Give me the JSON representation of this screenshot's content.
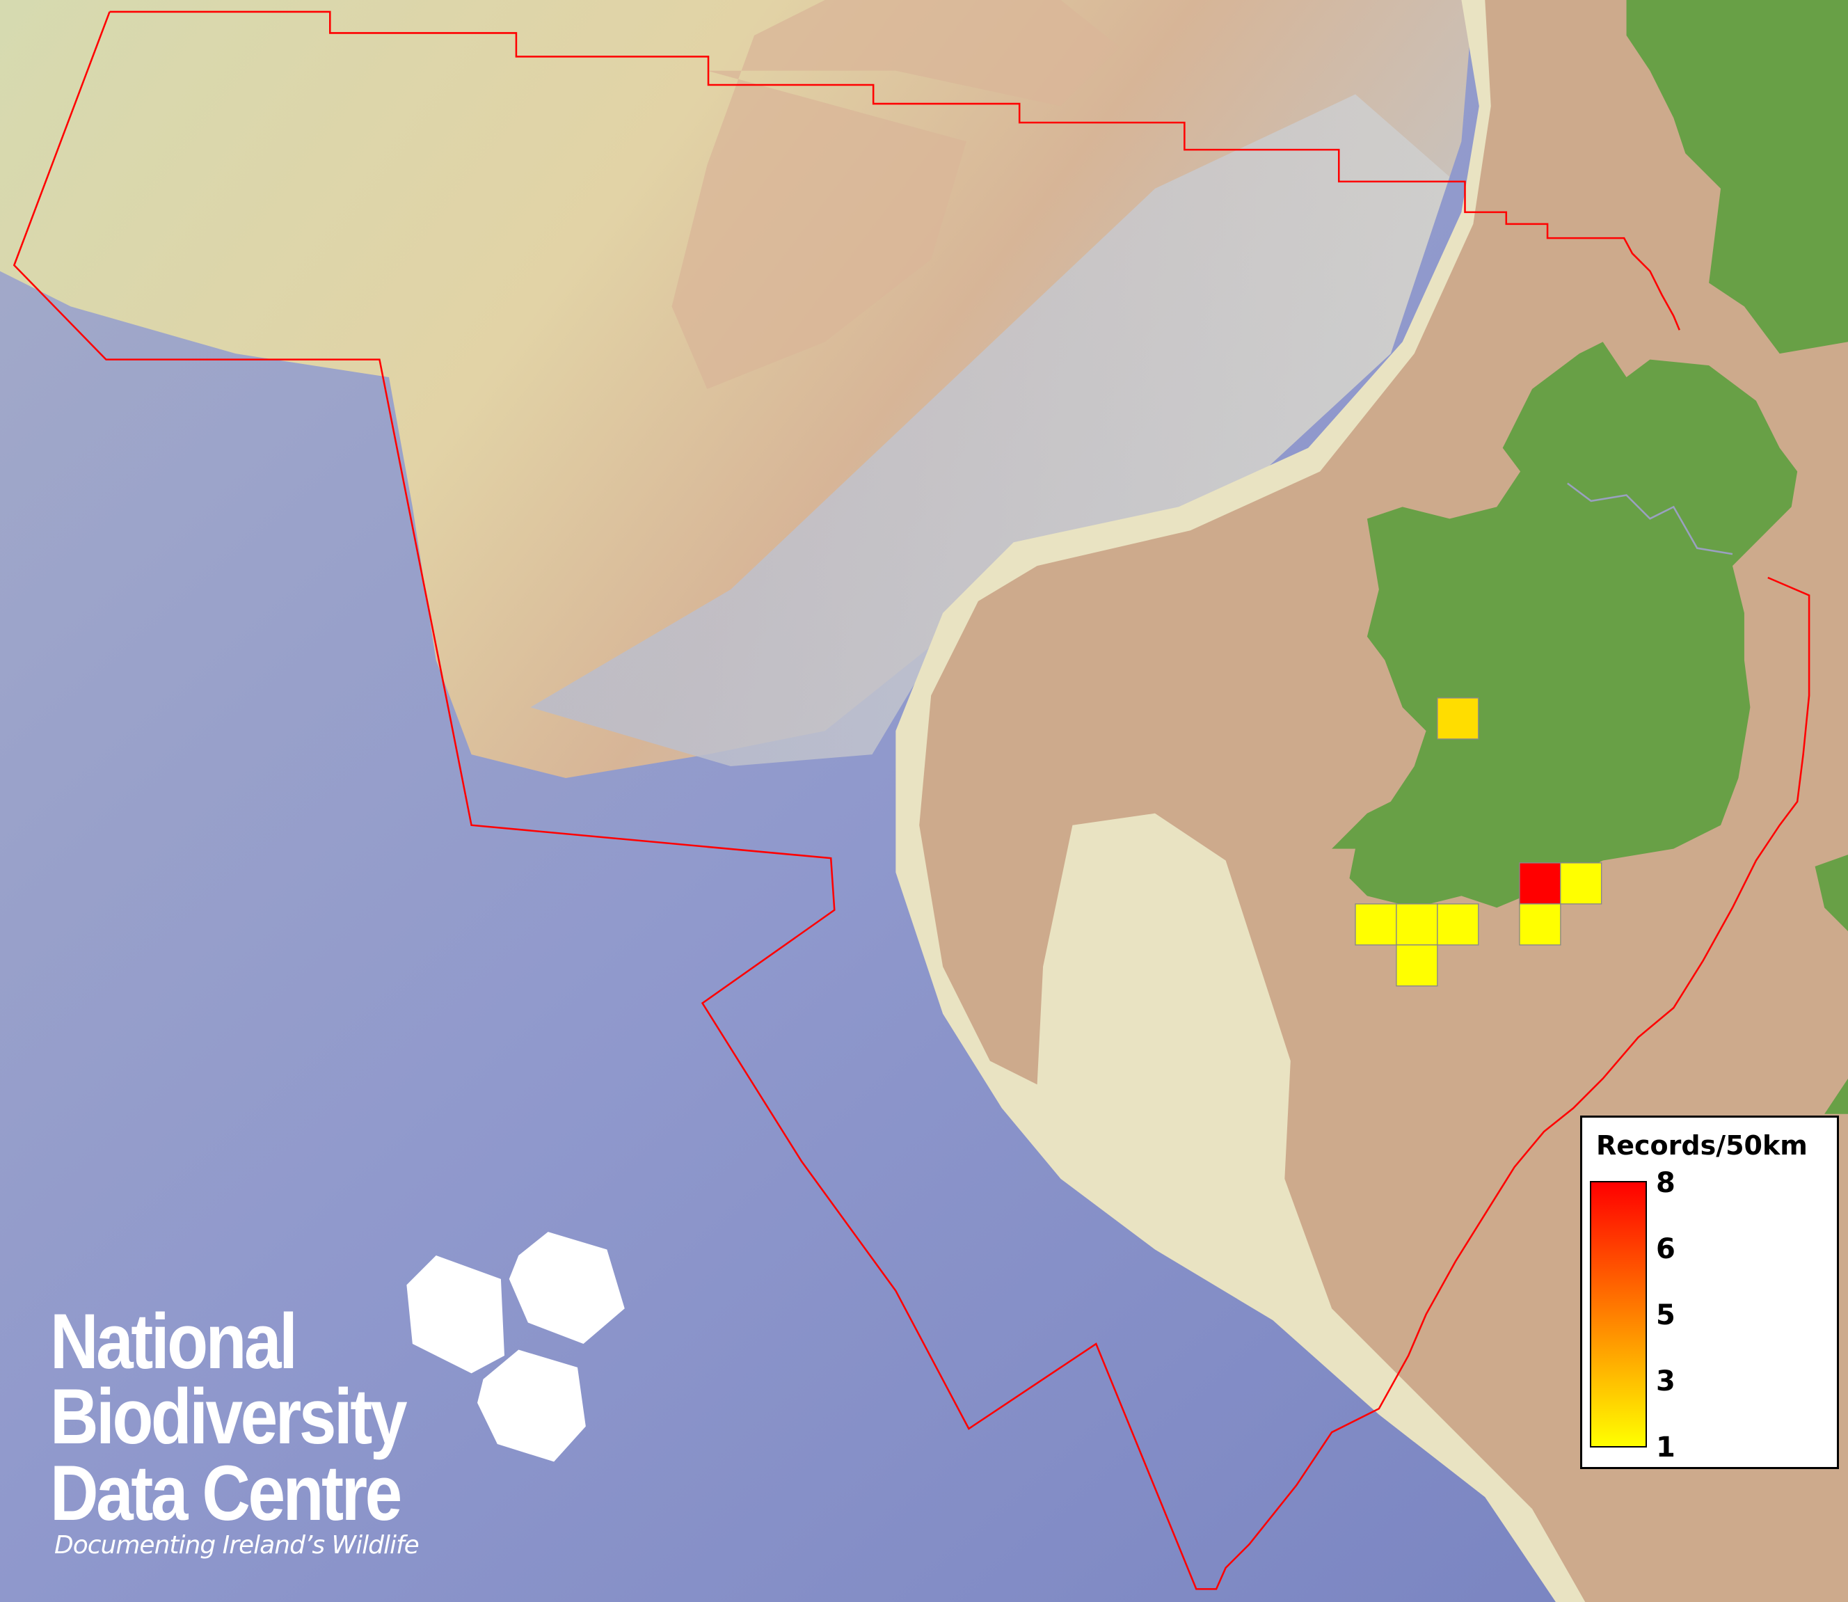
{
  "map": {
    "colors": {
      "boundary": "#ff0000",
      "land": "#68a046",
      "shelf": "#cdaa8c",
      "deep_ocean": "#7f89c4",
      "cell_border": "#888888"
    },
    "cells": [
      {
        "value": 2,
        "color": "#ffdd00"
      },
      {
        "value": 8,
        "color": "#ff0000"
      },
      {
        "value": 1,
        "color": "#ffff00"
      },
      {
        "value": 1,
        "color": "#ffff00"
      },
      {
        "value": 1,
        "color": "#ffff00"
      },
      {
        "value": 1,
        "color": "#ffff00"
      },
      {
        "value": 1,
        "color": "#ffff00"
      },
      {
        "value": 1,
        "color": "#ffff00"
      }
    ]
  },
  "legend": {
    "title": "Records/50km",
    "min_color": "#ffff00",
    "max_color": "#ff0000",
    "labels": [
      "8",
      "6",
      "5",
      "3",
      "1"
    ]
  },
  "logo": {
    "line1": "National",
    "line2": "Biodiversity",
    "line3": "Data Centre",
    "tagline": "Documenting Ireland’s Wildlife",
    "icons": [
      "plant-icon",
      "butterfly-icon",
      "seahorse-icon"
    ]
  }
}
